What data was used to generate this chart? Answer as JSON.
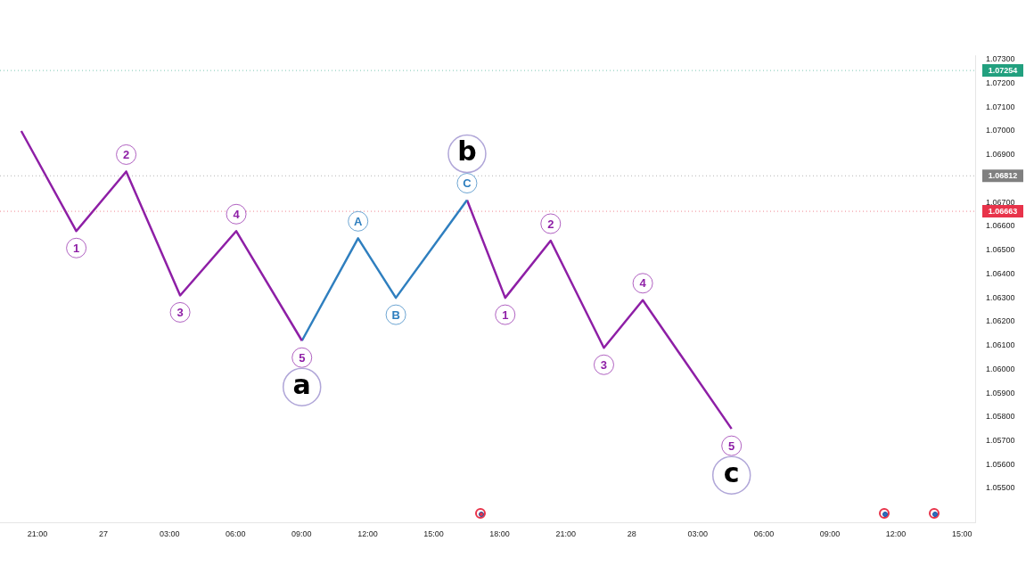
{
  "chart_data": {
    "type": "line",
    "xlim": [
      "--01-26T19:18",
      "--01-28T15:36"
    ],
    "ylim": [
      1.05357,
      1.07318
    ],
    "xticks": [
      {
        "value": "--01-26T21:00",
        "label": "21:00"
      },
      {
        "value": "--01-27T00:00",
        "label": "27"
      },
      {
        "value": "--01-27T03:00",
        "label": "03:00"
      },
      {
        "value": "--01-27T06:00",
        "label": "06:00"
      },
      {
        "value": "--01-27T09:00",
        "label": "09:00"
      },
      {
        "value": "--01-27T12:00",
        "label": "12:00"
      },
      {
        "value": "--01-27T15:00",
        "label": "15:00"
      },
      {
        "value": "--01-27T18:00",
        "label": "18:00"
      },
      {
        "value": "--01-27T21:00",
        "label": "21:00"
      },
      {
        "value": "--01-28T00:00",
        "label": "28"
      },
      {
        "value": "--01-28T03:00",
        "label": "03:00"
      },
      {
        "value": "--01-28T06:00",
        "label": "06:00"
      },
      {
        "value": "--01-28T09:00",
        "label": "09:00"
      },
      {
        "value": "--01-28T12:00",
        "label": "12:00"
      },
      {
        "value": "--01-28T15:00",
        "label": "15:00"
      }
    ],
    "yticks": [
      {
        "value": 1.055,
        "label": "1.05500"
      },
      {
        "value": 1.056,
        "label": "1.05600"
      },
      {
        "value": 1.057,
        "label": "1.05700"
      },
      {
        "value": 1.058,
        "label": "1.05800"
      },
      {
        "value": 1.059,
        "label": "1.05900"
      },
      {
        "value": 1.06,
        "label": "1.06000"
      },
      {
        "value": 1.061,
        "label": "1.06100"
      },
      {
        "value": 1.062,
        "label": "1.06200"
      },
      {
        "value": 1.063,
        "label": "1.06300"
      },
      {
        "value": 1.064,
        "label": "1.06400"
      },
      {
        "value": 1.065,
        "label": "1.06500"
      },
      {
        "value": 1.066,
        "label": "1.06600"
      },
      {
        "value": 1.067,
        "label": "1.06700"
      },
      {
        "value": 1.069,
        "label": "1.06900"
      },
      {
        "value": 1.07,
        "label": "1.07000"
      },
      {
        "value": 1.071,
        "label": "1.07100"
      },
      {
        "value": 1.072,
        "label": "1.07200"
      },
      {
        "value": 1.073,
        "label": "1.07300"
      }
    ],
    "grid": false,
    "legend": false,
    "marker": "none",
    "line_style": "solid",
    "series": [
      {
        "color": "#8e1fa6",
        "x": [
          "--01-26T20:16",
          "--01-26T22:46",
          "--01-27T01:02",
          "--01-27T03:29",
          "--01-27T06:02",
          "--01-27T09:01"
        ],
        "values": [
          1.07,
          1.0658,
          1.0683,
          1.0631,
          1.0658,
          1.0612
        ]
      },
      {
        "color": "#2f7fbf",
        "x": [
          "--01-27T09:01",
          "--01-27T11:34",
          "--01-27T13:17",
          "--01-27T16:31"
        ],
        "values": [
          1.0612,
          1.0655,
          1.063,
          1.0671
        ]
      },
      {
        "color": "#8e1fa6",
        "x": [
          "--01-27T16:31",
          "--01-27T18:15",
          "--01-27T20:19",
          "--01-27T22:44",
          "--01-28T00:30",
          "--01-28T04:32"
        ],
        "values": [
          1.0671,
          1.063,
          1.0654,
          1.0609,
          1.0629,
          1.0575
        ]
      }
    ],
    "ref_lines": [
      {
        "axis": "y",
        "value": 1.07254,
        "label": "1.07254",
        "color": "#22a07f",
        "line_style": "dotted"
      },
      {
        "axis": "y",
        "value": 1.06812,
        "label": "1.06812",
        "color": "#808080",
        "line_style": "dotted"
      },
      {
        "axis": "y",
        "value": 1.06663,
        "label": "1.06663",
        "color": "#e8334a",
        "line_style": "dotted"
      }
    ],
    "annotations": [
      {
        "text": "1",
        "x": "--01-26T22:46",
        "y": 1.0658
      },
      {
        "text": "2",
        "x": "--01-27T01:02",
        "y": 1.0683
      },
      {
        "text": "3",
        "x": "--01-27T03:29",
        "y": 1.0631
      },
      {
        "text": "4",
        "x": "--01-27T06:02",
        "y": 1.0658
      },
      {
        "text": "5",
        "x": "--01-27T09:01",
        "y": 1.0612
      },
      {
        "text": "a",
        "x": "--01-27T09:01",
        "y": 1.0612
      },
      {
        "text": "A",
        "x": "--01-27T11:34",
        "y": 1.0655
      },
      {
        "text": "B",
        "x": "--01-27T13:17",
        "y": 1.063
      },
      {
        "text": "C",
        "x": "--01-27T16:31",
        "y": 1.0671
      },
      {
        "text": "b",
        "x": "--01-27T16:31",
        "y": 1.0671
      },
      {
        "text": "1",
        "x": "--01-27T18:15",
        "y": 1.063
      },
      {
        "text": "2",
        "x": "--01-27T20:19",
        "y": 1.0654
      },
      {
        "text": "3",
        "x": "--01-27T22:44",
        "y": 1.0609
      },
      {
        "text": "4",
        "x": "--01-28T00:30",
        "y": 1.0629
      },
      {
        "text": "5",
        "x": "--01-28T04:32",
        "y": 1.0575
      },
      {
        "text": "c",
        "x": "--01-28T04:32",
        "y": 1.0575
      }
    ]
  }
}
